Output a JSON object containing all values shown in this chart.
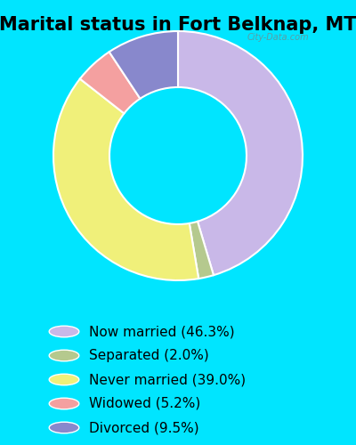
{
  "title": "Marital status in Fort Belknap, MT",
  "categories": [
    "Now married",
    "Separated",
    "Never married",
    "Widowed",
    "Divorced"
  ],
  "values": [
    46.3,
    2.0,
    39.0,
    5.2,
    9.5
  ],
  "colors": [
    "#c9b8e8",
    "#b5c98e",
    "#f0f07a",
    "#f4a0a0",
    "#8888cc"
  ],
  "legend_labels": [
    "Now married (46.3%)",
    "Separated (2.0%)",
    "Never married (39.0%)",
    "Widowed (5.2%)",
    "Divorced (9.5%)"
  ],
  "bg_color_chart": "#d4ede0",
  "bg_color_legend": "#00e5ff",
  "title_fontsize": 15,
  "legend_fontsize": 11,
  "watermark": "City-Data.com"
}
